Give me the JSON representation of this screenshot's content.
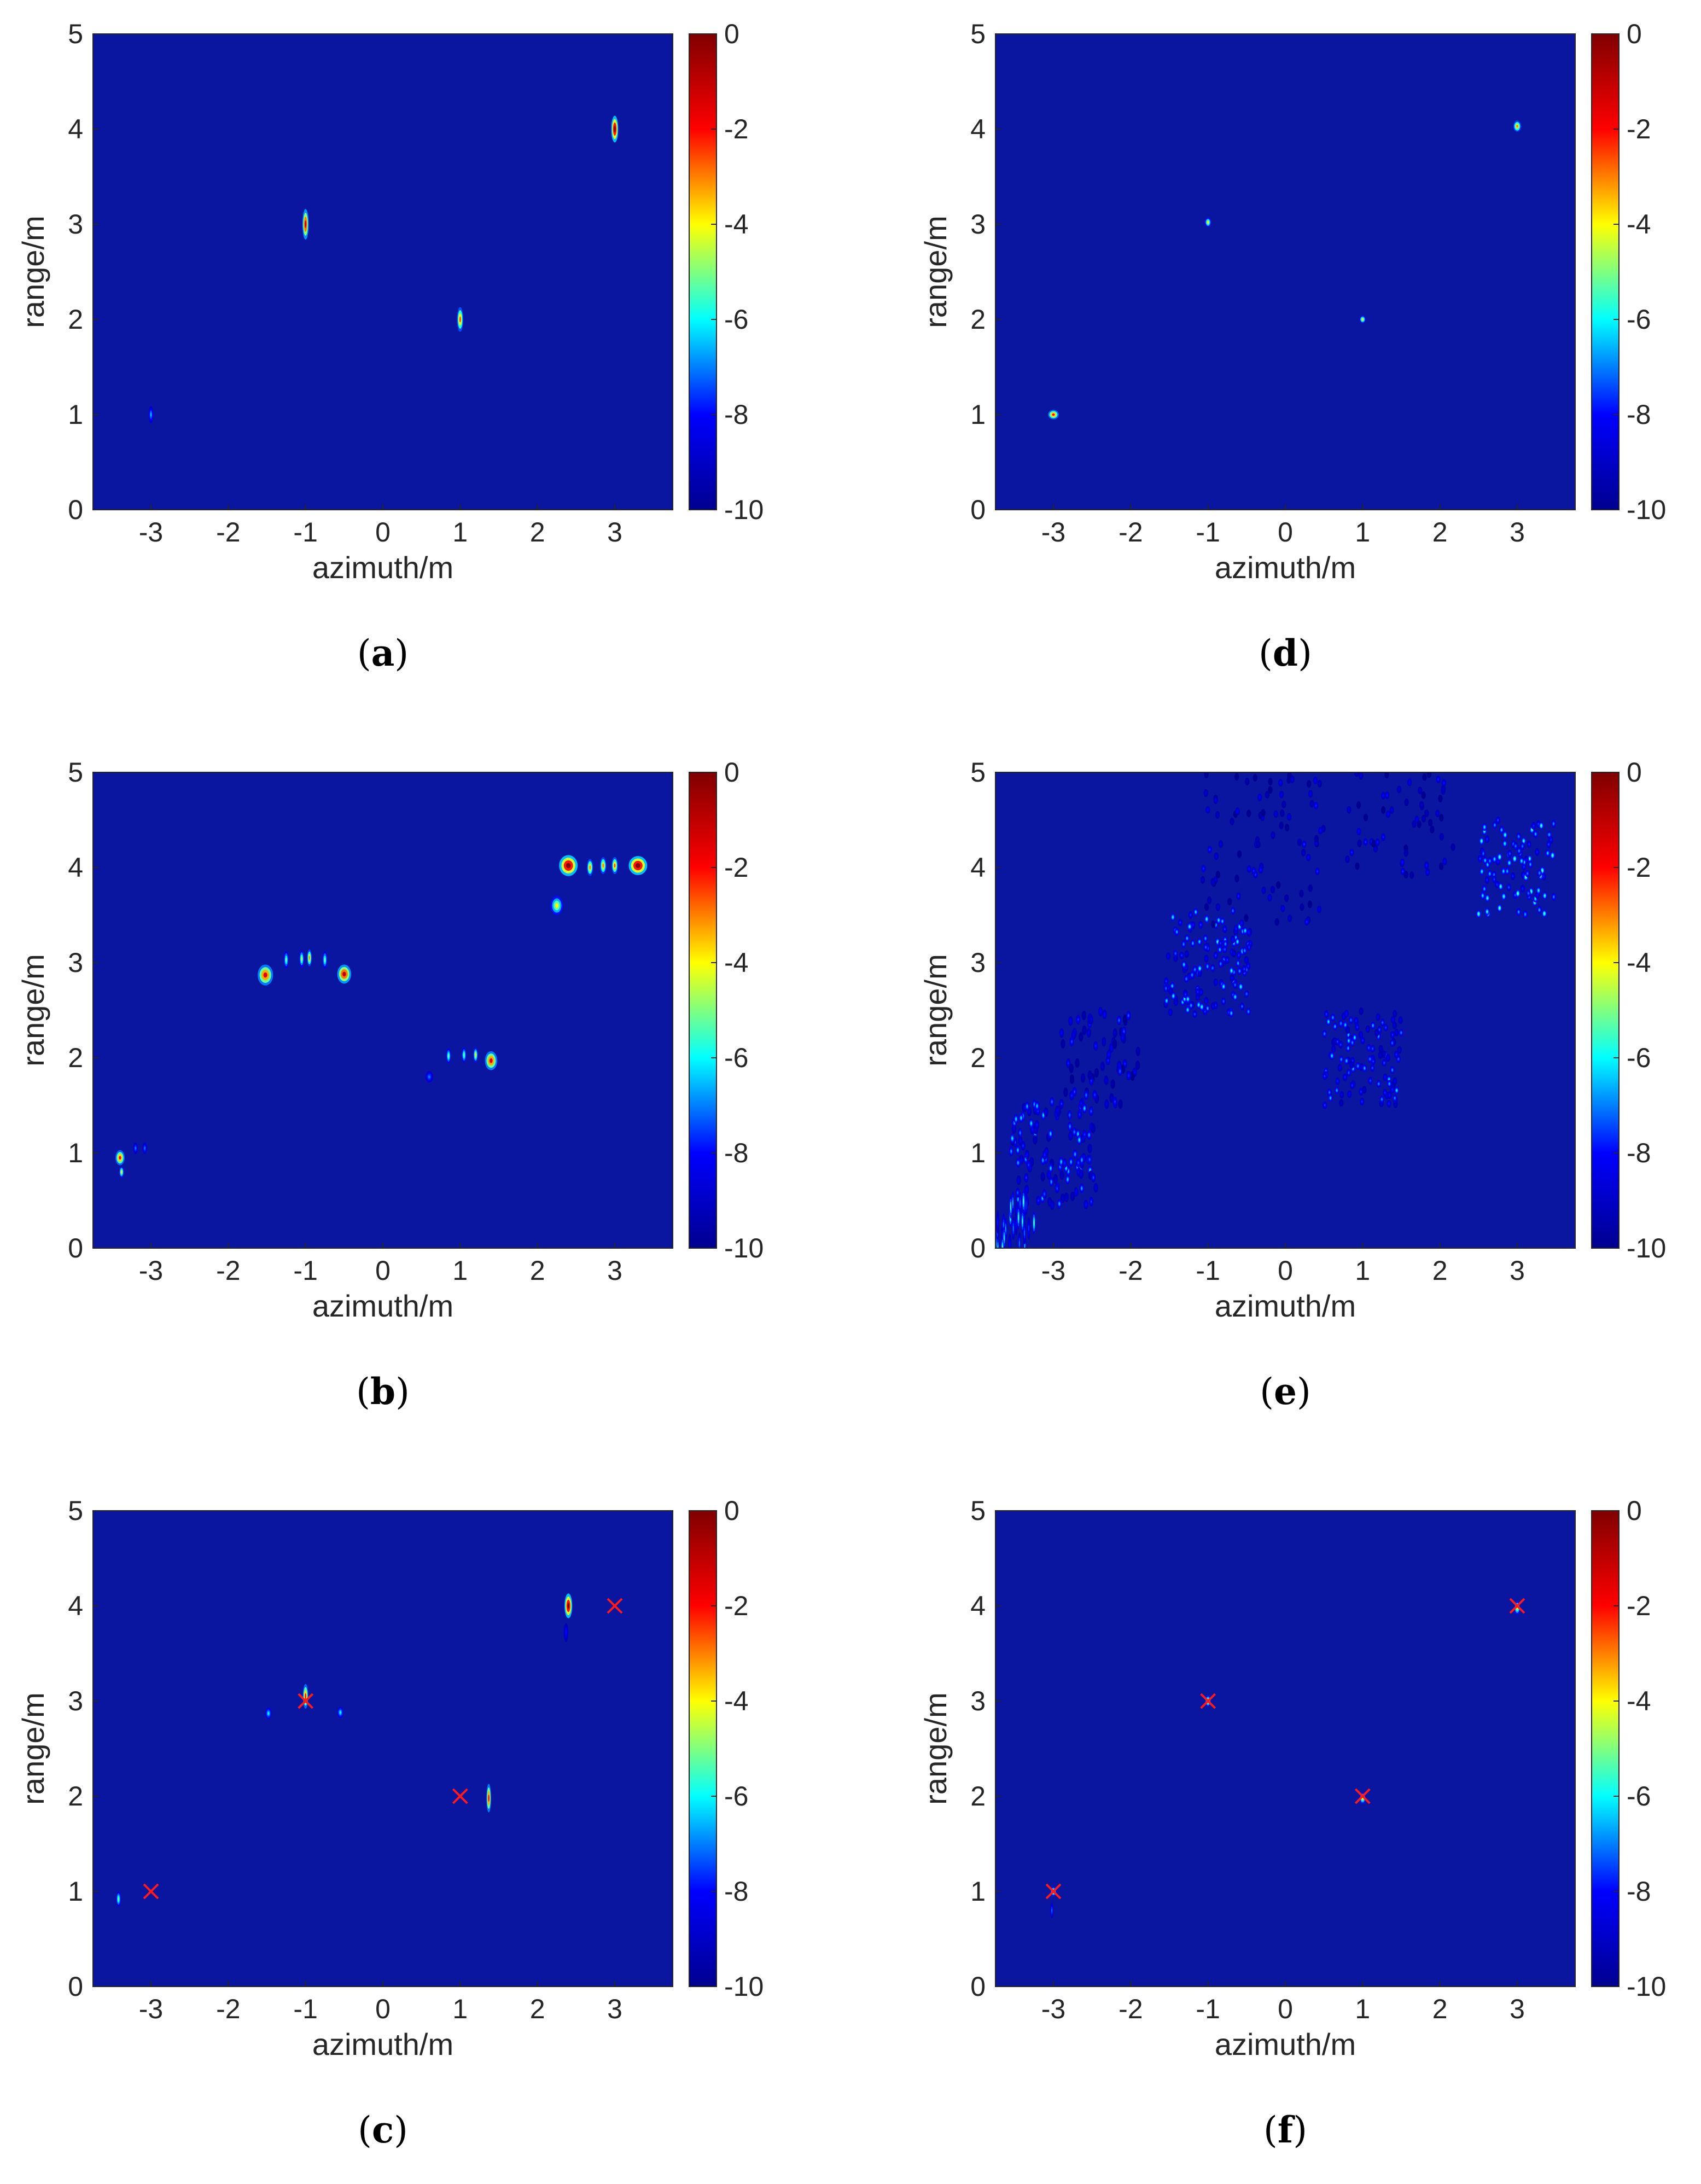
{
  "figure": {
    "colorscale": [
      "#00008f",
      "#0000ff",
      "#00ffff",
      "#ffff00",
      "#ff0000",
      "#800000"
    ],
    "background_color": "#0b16a0",
    "marker_color": "#ff1a1a",
    "colorbar": {
      "min": -10,
      "max": 0,
      "ticks": [
        "0",
        "-2",
        "-4",
        "-6",
        "-8",
        "-10"
      ]
    }
  },
  "chart_data": [
    {
      "type": "heatmap",
      "caption_letter": "a",
      "xlabel": "azimuth/m",
      "ylabel": "range/m",
      "xlim": [
        -3.75,
        3.75
      ],
      "ylim": [
        0,
        5
      ],
      "xticks": [
        "-3",
        "-2",
        "-1",
        "0",
        "1",
        "2",
        "3"
      ],
      "yticks": [
        "0",
        "1",
        "2",
        "3",
        "4",
        "5"
      ],
      "blobs": [
        {
          "x": -3,
          "y": 1,
          "peak": -6.5,
          "w": 0.03,
          "h": 0.09,
          "n": 1,
          "jitter": 0
        },
        {
          "x": -1,
          "y": 3,
          "peak": -1,
          "w": 0.04,
          "h": 0.16,
          "n": 1,
          "jitter": 0
        },
        {
          "x": 1,
          "y": 2,
          "peak": -2.5,
          "w": 0.04,
          "h": 0.13,
          "n": 1,
          "jitter": 0
        },
        {
          "x": 3,
          "y": 4,
          "peak": 0,
          "w": 0.045,
          "h": 0.14,
          "n": 1,
          "jitter": 0
        }
      ],
      "markers": []
    },
    {
      "type": "heatmap",
      "caption_letter": "b",
      "xlabel": "azimuth/m",
      "ylabel": "range/m",
      "xlim": [
        -3.75,
        3.75
      ],
      "ylim": [
        0,
        5
      ],
      "xticks": [
        "-3",
        "-2",
        "-1",
        "0",
        "1",
        "2",
        "3"
      ],
      "yticks": [
        "0",
        "1",
        "2",
        "3",
        "4",
        "5"
      ],
      "blobs": [
        {
          "x": -3.4,
          "y": 0.95,
          "peak": -2,
          "w": 0.06,
          "h": 0.08,
          "n": 1,
          "jitter": 0
        },
        {
          "x": -3.38,
          "y": 0.8,
          "peak": -4,
          "w": 0.03,
          "h": 0.06,
          "n": 1,
          "jitter": 0
        },
        {
          "x": -3.2,
          "y": 1.05,
          "peak": -7,
          "w": 0.03,
          "h": 0.06,
          "n": 1,
          "jitter": 0
        },
        {
          "x": -3.08,
          "y": 1.05,
          "peak": -7,
          "w": 0.03,
          "h": 0.06,
          "n": 1,
          "jitter": 0
        },
        {
          "x": -1.52,
          "y": 2.87,
          "peak": -1.5,
          "w": 0.1,
          "h": 0.11,
          "n": 1,
          "jitter": 0
        },
        {
          "x": -1.25,
          "y": 3.03,
          "peak": -5,
          "w": 0.03,
          "h": 0.09,
          "n": 1,
          "jitter": 0
        },
        {
          "x": -1.05,
          "y": 3.04,
          "peak": -4.5,
          "w": 0.03,
          "h": 0.09,
          "n": 1,
          "jitter": 0
        },
        {
          "x": -0.95,
          "y": 3.05,
          "peak": -3,
          "w": 0.03,
          "h": 0.09,
          "n": 1,
          "jitter": 0
        },
        {
          "x": -0.75,
          "y": 3.03,
          "peak": -5,
          "w": 0.03,
          "h": 0.09,
          "n": 1,
          "jitter": 0
        },
        {
          "x": -0.5,
          "y": 2.88,
          "peak": -1,
          "w": 0.09,
          "h": 0.1,
          "n": 1,
          "jitter": 0
        },
        {
          "x": 0.6,
          "y": 1.8,
          "peak": -7,
          "w": 0.05,
          "h": 0.06,
          "n": 1,
          "jitter": 0
        },
        {
          "x": 0.85,
          "y": 2.02,
          "peak": -5,
          "w": 0.03,
          "h": 0.08,
          "n": 1,
          "jitter": 0
        },
        {
          "x": 1.05,
          "y": 2.03,
          "peak": -5,
          "w": 0.03,
          "h": 0.08,
          "n": 1,
          "jitter": 0
        },
        {
          "x": 1.2,
          "y": 2.03,
          "peak": -4,
          "w": 0.03,
          "h": 0.08,
          "n": 1,
          "jitter": 0
        },
        {
          "x": 1.4,
          "y": 1.97,
          "peak": -1.5,
          "w": 0.08,
          "h": 0.1,
          "n": 1,
          "jitter": 0
        },
        {
          "x": 2.25,
          "y": 3.6,
          "peak": -4,
          "w": 0.08,
          "h": 0.1,
          "n": 1,
          "jitter": 0
        },
        {
          "x": 2.4,
          "y": 4.02,
          "peak": 0,
          "w": 0.12,
          "h": 0.11,
          "n": 1,
          "jitter": 0
        },
        {
          "x": 2.68,
          "y": 4.0,
          "peak": -3,
          "w": 0.04,
          "h": 0.09,
          "n": 1,
          "jitter": 0
        },
        {
          "x": 2.85,
          "y": 4.02,
          "peak": -3,
          "w": 0.04,
          "h": 0.09,
          "n": 1,
          "jitter": 0
        },
        {
          "x": 3.0,
          "y": 4.02,
          "peak": -2.5,
          "w": 0.04,
          "h": 0.09,
          "n": 1,
          "jitter": 0
        },
        {
          "x": 3.3,
          "y": 4.02,
          "peak": 0,
          "w": 0.12,
          "h": 0.1,
          "n": 1,
          "jitter": 0
        }
      ],
      "markers": []
    },
    {
      "type": "heatmap",
      "caption_letter": "c",
      "xlabel": "azimuth/m",
      "ylabel": "range/m",
      "xlim": [
        -3.75,
        3.75
      ],
      "ylim": [
        0,
        5
      ],
      "xticks": [
        "-3",
        "-2",
        "-1",
        "0",
        "1",
        "2",
        "3"
      ],
      "yticks": [
        "0",
        "1",
        "2",
        "3",
        "4",
        "5"
      ],
      "blobs": [
        {
          "x": -3.42,
          "y": 0.92,
          "peak": -5,
          "w": 0.03,
          "h": 0.08,
          "n": 1,
          "jitter": 0
        },
        {
          "x": -1.48,
          "y": 2.87,
          "peak": -6,
          "w": 0.04,
          "h": 0.06,
          "n": 1,
          "jitter": 0
        },
        {
          "x": -1.0,
          "y": 3.05,
          "peak": -2,
          "w": 0.035,
          "h": 0.13,
          "n": 1,
          "jitter": 0
        },
        {
          "x": -0.55,
          "y": 2.88,
          "peak": -6,
          "w": 0.04,
          "h": 0.06,
          "n": 1,
          "jitter": 0
        },
        {
          "x": 1.37,
          "y": 1.98,
          "peak": -1.5,
          "w": 0.03,
          "h": 0.15,
          "n": 1,
          "jitter": 0
        },
        {
          "x": 2.4,
          "y": 4.0,
          "peak": 0,
          "w": 0.05,
          "h": 0.13,
          "n": 1,
          "jitter": 0
        },
        {
          "x": 2.37,
          "y": 3.72,
          "peak": -8,
          "w": 0.03,
          "h": 0.1,
          "n": 1,
          "jitter": 0
        }
      ],
      "markers": [
        {
          "x": -3,
          "y": 1
        },
        {
          "x": -1,
          "y": 3
        },
        {
          "x": 1,
          "y": 2
        },
        {
          "x": 3,
          "y": 4
        }
      ]
    },
    {
      "type": "heatmap",
      "caption_letter": "d",
      "xlabel": "azimuth/m",
      "ylabel": "range/m",
      "xlim": [
        -3.75,
        3.75
      ],
      "ylim": [
        0,
        5
      ],
      "xticks": [
        "-3",
        "-2",
        "-1",
        "0",
        "1",
        "2",
        "3"
      ],
      "yticks": [
        "0",
        "1",
        "2",
        "3",
        "4",
        "5"
      ],
      "blobs": [
        {
          "x": -3.0,
          "y": 1.0,
          "peak": -2,
          "w": 0.07,
          "h": 0.05,
          "n": 1,
          "jitter": 0
        },
        {
          "x": -1.0,
          "y": 3.02,
          "peak": -4,
          "w": 0.04,
          "h": 0.05,
          "n": 1,
          "jitter": 0
        },
        {
          "x": 1.0,
          "y": 2.0,
          "peak": -4,
          "w": 0.04,
          "h": 0.04,
          "n": 1,
          "jitter": 0
        },
        {
          "x": 3.0,
          "y": 4.03,
          "peak": -3,
          "w": 0.05,
          "h": 0.06,
          "n": 1,
          "jitter": 0
        }
      ],
      "markers": []
    },
    {
      "type": "heatmap",
      "caption_letter": "e",
      "xlabel": "azimuth/m",
      "ylabel": "range/m",
      "xlim": [
        -3.75,
        3.75
      ],
      "ylim": [
        0,
        5
      ],
      "xticks": [
        "-3",
        "-2",
        "-1",
        "0",
        "1",
        "2",
        "3"
      ],
      "yticks": [
        "0",
        "1",
        "2",
        "3",
        "4",
        "5"
      ],
      "blobs": [
        {
          "x": -1.0,
          "y": 3.0,
          "peak": -5.5,
          "w": 0.03,
          "h": 0.04,
          "n": 140,
          "jitter": 0.55
        },
        {
          "x": 1.0,
          "y": 2.0,
          "peak": -6,
          "w": 0.03,
          "h": 0.04,
          "n": 110,
          "jitter": 0.5
        },
        {
          "x": 3.0,
          "y": 4.0,
          "peak": -5,
          "w": 0.03,
          "h": 0.04,
          "n": 90,
          "jitter": 0.5
        },
        {
          "x": -3.0,
          "y": 1.0,
          "peak": -6,
          "w": 0.03,
          "h": 0.05,
          "n": 120,
          "jitter": 0.55
        },
        {
          "x": -2.4,
          "y": 2.0,
          "peak": -7,
          "w": 0.03,
          "h": 0.05,
          "n": 70,
          "jitter": 0.5
        },
        {
          "x": -0.3,
          "y": 4.2,
          "peak": -7.5,
          "w": 0.03,
          "h": 0.04,
          "n": 90,
          "jitter": 0.8
        },
        {
          "x": 1.5,
          "y": 4.6,
          "peak": -7.5,
          "w": 0.03,
          "h": 0.04,
          "n": 70,
          "jitter": 0.7
        },
        {
          "x": -3.5,
          "y": 0.25,
          "peak": -5,
          "w": 0.02,
          "h": 0.12,
          "n": 30,
          "jitter": 0.25
        }
      ],
      "markers": []
    },
    {
      "type": "heatmap",
      "caption_letter": "f",
      "xlabel": "azimuth/m",
      "ylabel": "range/m",
      "xlim": [
        -3.75,
        3.75
      ],
      "ylim": [
        0,
        5
      ],
      "xticks": [
        "-3",
        "-2",
        "-1",
        "0",
        "1",
        "2",
        "3"
      ],
      "yticks": [
        "0",
        "1",
        "2",
        "3",
        "4",
        "5"
      ],
      "blobs": [
        {
          "x": -3.0,
          "y": 1.0,
          "peak": -4,
          "w": 0.04,
          "h": 0.05,
          "n": 1,
          "jitter": 0
        },
        {
          "x": -3.02,
          "y": 0.8,
          "peak": -7,
          "w": 0.02,
          "h": 0.08,
          "n": 1,
          "jitter": 0
        },
        {
          "x": -1.0,
          "y": 3.0,
          "peak": -4,
          "w": 0.04,
          "h": 0.06,
          "n": 1,
          "jitter": 0
        },
        {
          "x": 1.0,
          "y": 1.98,
          "peak": -4,
          "w": 0.04,
          "h": 0.06,
          "n": 1,
          "jitter": 0
        },
        {
          "x": 3.0,
          "y": 3.98,
          "peak": -4,
          "w": 0.04,
          "h": 0.07,
          "n": 1,
          "jitter": 0
        }
      ],
      "markers": [
        {
          "x": -3,
          "y": 1
        },
        {
          "x": -1,
          "y": 3
        },
        {
          "x": 1,
          "y": 2
        },
        {
          "x": 3,
          "y": 4
        }
      ]
    }
  ]
}
